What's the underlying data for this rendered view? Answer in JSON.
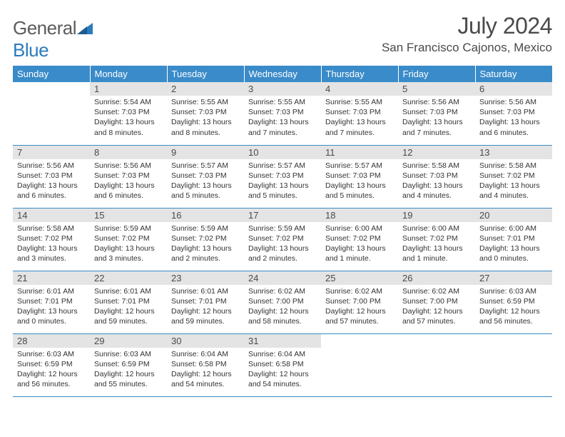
{
  "logo": {
    "word1": "General",
    "word2": "Blue"
  },
  "title": "July 2024",
  "location": "San Francisco Cajonos, Mexico",
  "colors": {
    "header_bg": "#3a8bc9",
    "header_text": "#ffffff",
    "daynum_bg": "#e4e4e4",
    "text": "#4a4a4a",
    "rule": "#3a8bc9",
    "logo_gray": "#5b5b5b",
    "logo_blue": "#2b7bbf"
  },
  "typography": {
    "title_fontsize": 32,
    "location_fontsize": 17,
    "dayheader_fontsize": 13,
    "daynum_fontsize": 13,
    "body_fontsize": 10.5
  },
  "day_headers": [
    "Sunday",
    "Monday",
    "Tuesday",
    "Wednesday",
    "Thursday",
    "Friday",
    "Saturday"
  ],
  "weeks": [
    [
      {
        "n": "",
        "sunrise": "",
        "sunset": "",
        "daylight": ""
      },
      {
        "n": "1",
        "sunrise": "Sunrise: 5:54 AM",
        "sunset": "Sunset: 7:03 PM",
        "daylight": "Daylight: 13 hours and 8 minutes."
      },
      {
        "n": "2",
        "sunrise": "Sunrise: 5:55 AM",
        "sunset": "Sunset: 7:03 PM",
        "daylight": "Daylight: 13 hours and 8 minutes."
      },
      {
        "n": "3",
        "sunrise": "Sunrise: 5:55 AM",
        "sunset": "Sunset: 7:03 PM",
        "daylight": "Daylight: 13 hours and 7 minutes."
      },
      {
        "n": "4",
        "sunrise": "Sunrise: 5:55 AM",
        "sunset": "Sunset: 7:03 PM",
        "daylight": "Daylight: 13 hours and 7 minutes."
      },
      {
        "n": "5",
        "sunrise": "Sunrise: 5:56 AM",
        "sunset": "Sunset: 7:03 PM",
        "daylight": "Daylight: 13 hours and 7 minutes."
      },
      {
        "n": "6",
        "sunrise": "Sunrise: 5:56 AM",
        "sunset": "Sunset: 7:03 PM",
        "daylight": "Daylight: 13 hours and 6 minutes."
      }
    ],
    [
      {
        "n": "7",
        "sunrise": "Sunrise: 5:56 AM",
        "sunset": "Sunset: 7:03 PM",
        "daylight": "Daylight: 13 hours and 6 minutes."
      },
      {
        "n": "8",
        "sunrise": "Sunrise: 5:56 AM",
        "sunset": "Sunset: 7:03 PM",
        "daylight": "Daylight: 13 hours and 6 minutes."
      },
      {
        "n": "9",
        "sunrise": "Sunrise: 5:57 AM",
        "sunset": "Sunset: 7:03 PM",
        "daylight": "Daylight: 13 hours and 5 minutes."
      },
      {
        "n": "10",
        "sunrise": "Sunrise: 5:57 AM",
        "sunset": "Sunset: 7:03 PM",
        "daylight": "Daylight: 13 hours and 5 minutes."
      },
      {
        "n": "11",
        "sunrise": "Sunrise: 5:57 AM",
        "sunset": "Sunset: 7:03 PM",
        "daylight": "Daylight: 13 hours and 5 minutes."
      },
      {
        "n": "12",
        "sunrise": "Sunrise: 5:58 AM",
        "sunset": "Sunset: 7:03 PM",
        "daylight": "Daylight: 13 hours and 4 minutes."
      },
      {
        "n": "13",
        "sunrise": "Sunrise: 5:58 AM",
        "sunset": "Sunset: 7:02 PM",
        "daylight": "Daylight: 13 hours and 4 minutes."
      }
    ],
    [
      {
        "n": "14",
        "sunrise": "Sunrise: 5:58 AM",
        "sunset": "Sunset: 7:02 PM",
        "daylight": "Daylight: 13 hours and 3 minutes."
      },
      {
        "n": "15",
        "sunrise": "Sunrise: 5:59 AM",
        "sunset": "Sunset: 7:02 PM",
        "daylight": "Daylight: 13 hours and 3 minutes."
      },
      {
        "n": "16",
        "sunrise": "Sunrise: 5:59 AM",
        "sunset": "Sunset: 7:02 PM",
        "daylight": "Daylight: 13 hours and 2 minutes."
      },
      {
        "n": "17",
        "sunrise": "Sunrise: 5:59 AM",
        "sunset": "Sunset: 7:02 PM",
        "daylight": "Daylight: 13 hours and 2 minutes."
      },
      {
        "n": "18",
        "sunrise": "Sunrise: 6:00 AM",
        "sunset": "Sunset: 7:02 PM",
        "daylight": "Daylight: 13 hours and 1 minute."
      },
      {
        "n": "19",
        "sunrise": "Sunrise: 6:00 AM",
        "sunset": "Sunset: 7:02 PM",
        "daylight": "Daylight: 13 hours and 1 minute."
      },
      {
        "n": "20",
        "sunrise": "Sunrise: 6:00 AM",
        "sunset": "Sunset: 7:01 PM",
        "daylight": "Daylight: 13 hours and 0 minutes."
      }
    ],
    [
      {
        "n": "21",
        "sunrise": "Sunrise: 6:01 AM",
        "sunset": "Sunset: 7:01 PM",
        "daylight": "Daylight: 13 hours and 0 minutes."
      },
      {
        "n": "22",
        "sunrise": "Sunrise: 6:01 AM",
        "sunset": "Sunset: 7:01 PM",
        "daylight": "Daylight: 12 hours and 59 minutes."
      },
      {
        "n": "23",
        "sunrise": "Sunrise: 6:01 AM",
        "sunset": "Sunset: 7:01 PM",
        "daylight": "Daylight: 12 hours and 59 minutes."
      },
      {
        "n": "24",
        "sunrise": "Sunrise: 6:02 AM",
        "sunset": "Sunset: 7:00 PM",
        "daylight": "Daylight: 12 hours and 58 minutes."
      },
      {
        "n": "25",
        "sunrise": "Sunrise: 6:02 AM",
        "sunset": "Sunset: 7:00 PM",
        "daylight": "Daylight: 12 hours and 57 minutes."
      },
      {
        "n": "26",
        "sunrise": "Sunrise: 6:02 AM",
        "sunset": "Sunset: 7:00 PM",
        "daylight": "Daylight: 12 hours and 57 minutes."
      },
      {
        "n": "27",
        "sunrise": "Sunrise: 6:03 AM",
        "sunset": "Sunset: 6:59 PM",
        "daylight": "Daylight: 12 hours and 56 minutes."
      }
    ],
    [
      {
        "n": "28",
        "sunrise": "Sunrise: 6:03 AM",
        "sunset": "Sunset: 6:59 PM",
        "daylight": "Daylight: 12 hours and 56 minutes."
      },
      {
        "n": "29",
        "sunrise": "Sunrise: 6:03 AM",
        "sunset": "Sunset: 6:59 PM",
        "daylight": "Daylight: 12 hours and 55 minutes."
      },
      {
        "n": "30",
        "sunrise": "Sunrise: 6:04 AM",
        "sunset": "Sunset: 6:58 PM",
        "daylight": "Daylight: 12 hours and 54 minutes."
      },
      {
        "n": "31",
        "sunrise": "Sunrise: 6:04 AM",
        "sunset": "Sunset: 6:58 PM",
        "daylight": "Daylight: 12 hours and 54 minutes."
      },
      {
        "n": "",
        "sunrise": "",
        "sunset": "",
        "daylight": ""
      },
      {
        "n": "",
        "sunrise": "",
        "sunset": "",
        "daylight": ""
      },
      {
        "n": "",
        "sunrise": "",
        "sunset": "",
        "daylight": ""
      }
    ]
  ]
}
